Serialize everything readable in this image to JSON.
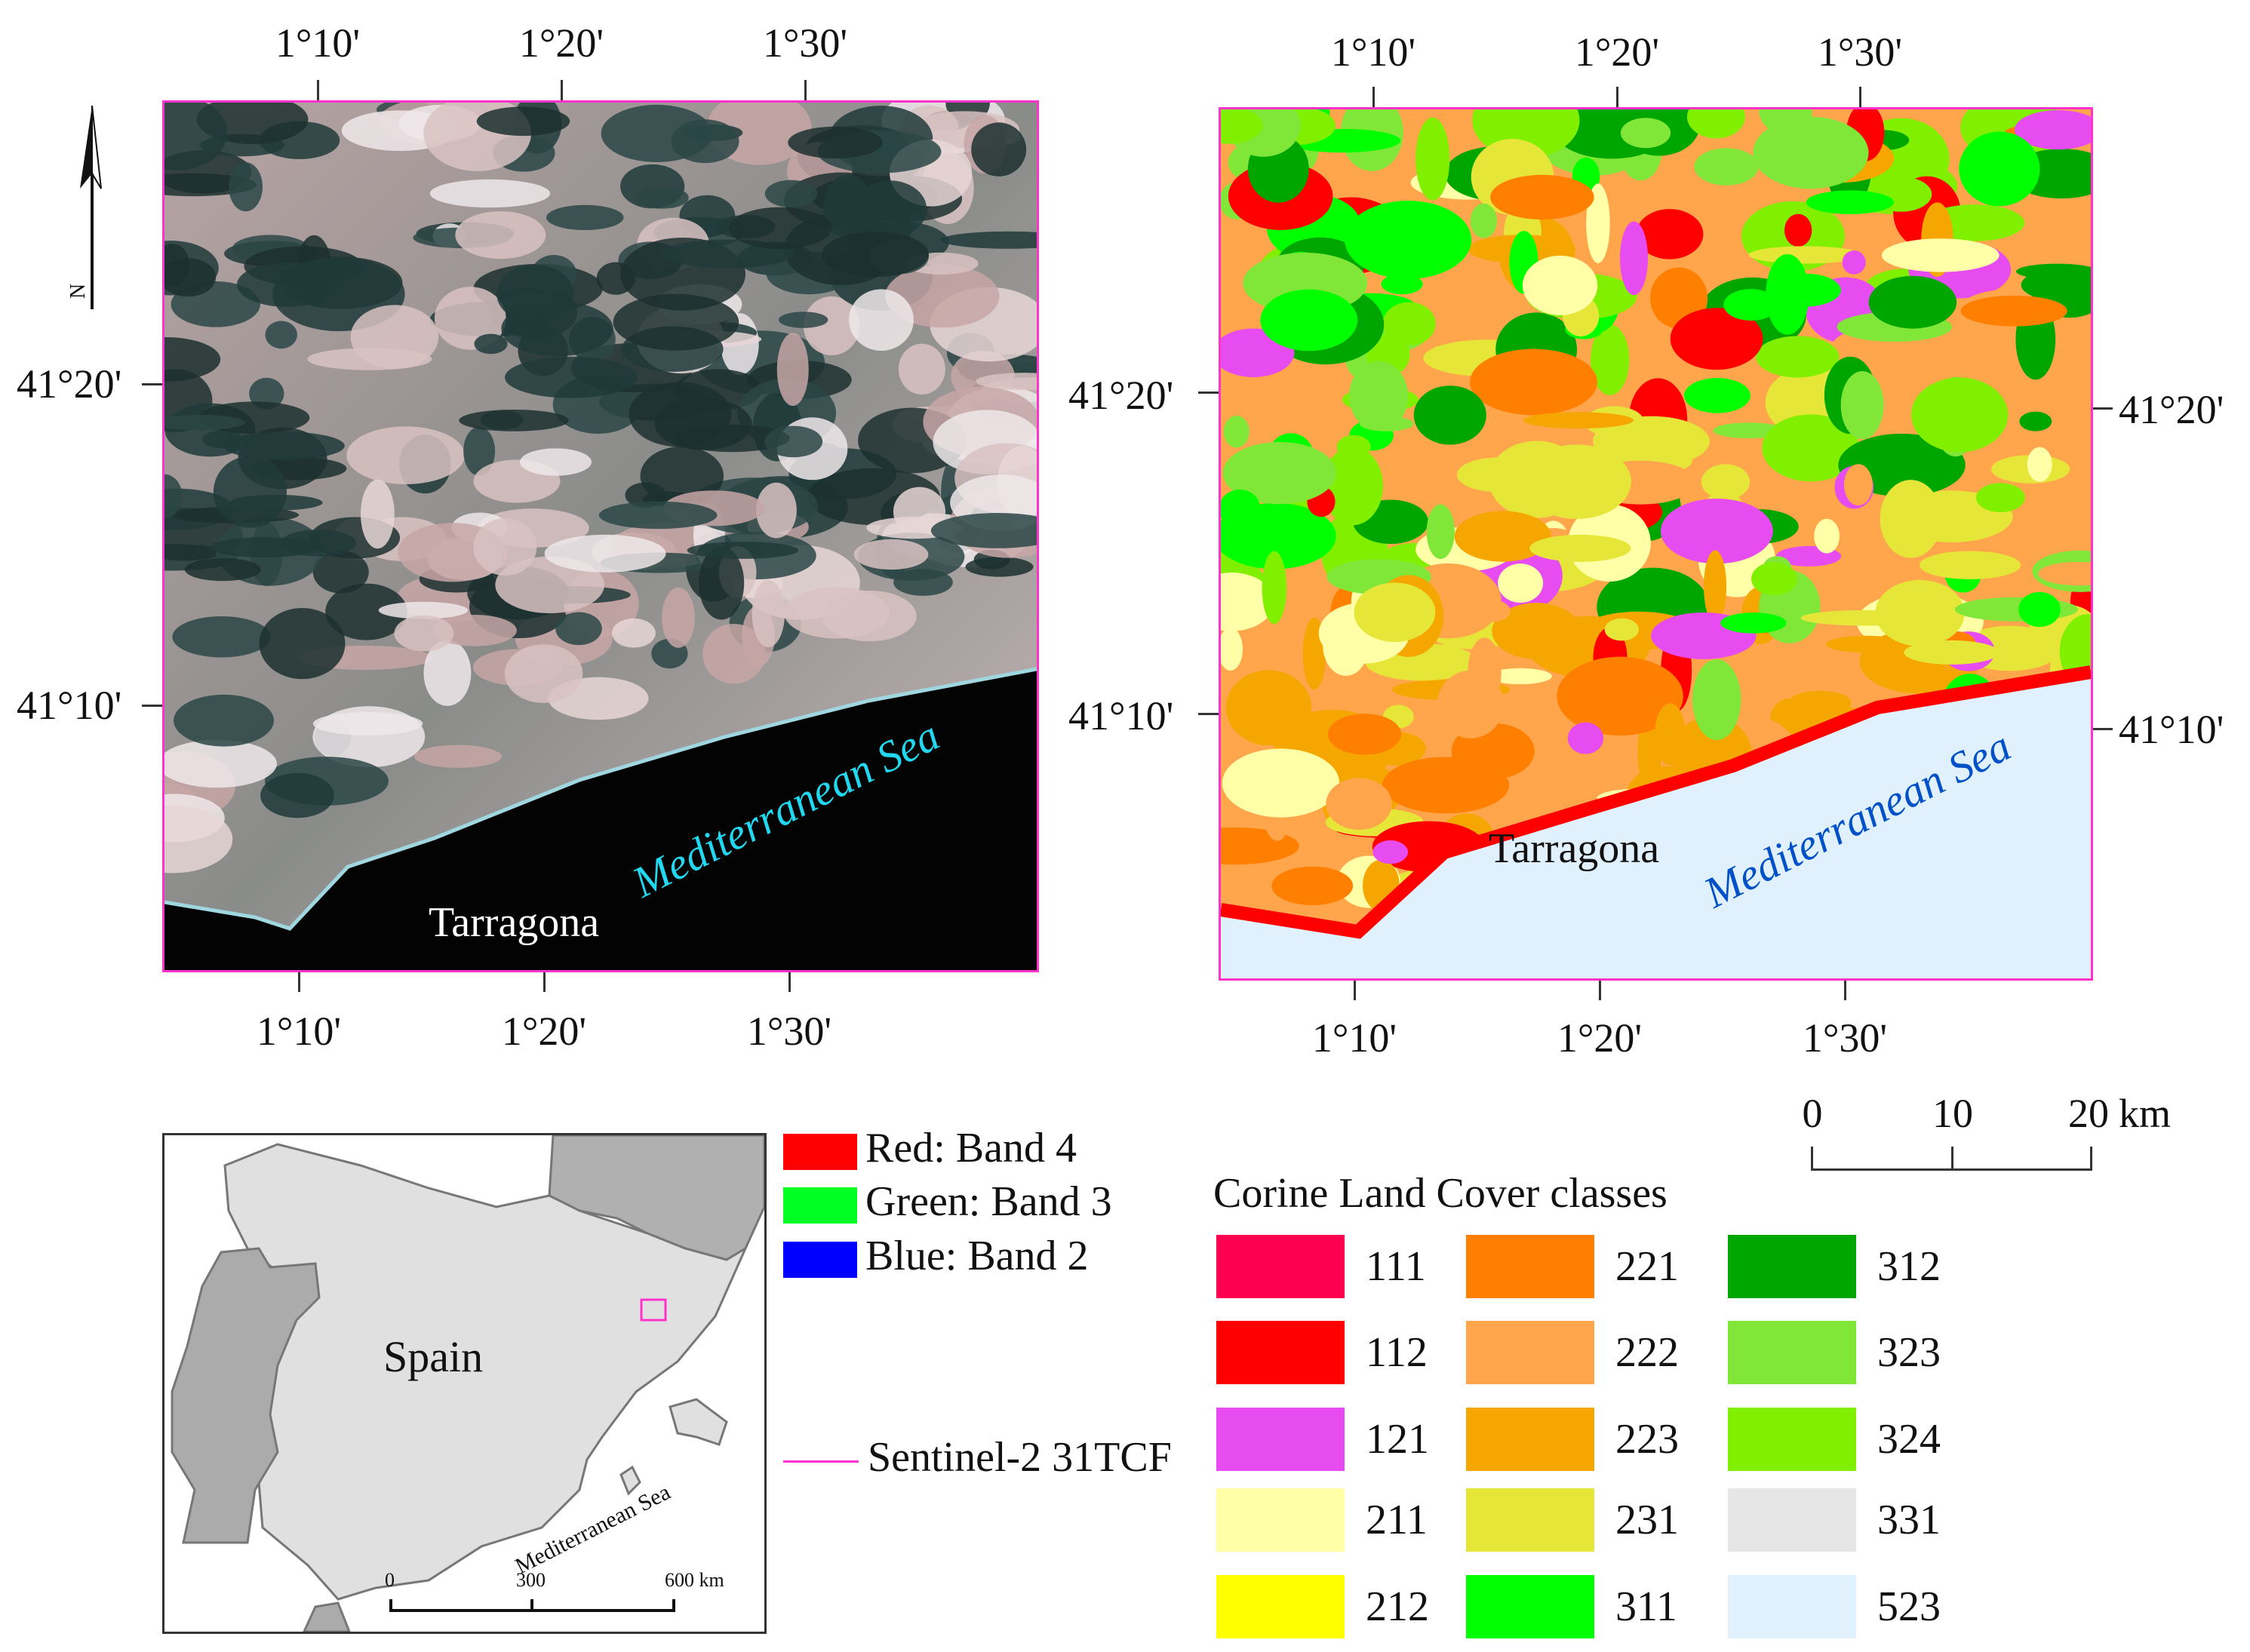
{
  "left_map": {
    "top_ticks": [
      "1°10'",
      "1°20'",
      "1°30'"
    ],
    "bottom_ticks": [
      "1°10'",
      "1°20'",
      "1°30'"
    ],
    "lat_ticks": [
      "41°20'",
      "41°10'"
    ],
    "city_label": "Tarragona",
    "sea_label": "Mediterranean Sea",
    "sea_label_color": "#22d8f0",
    "frame_color": "#ff33cc"
  },
  "right_map": {
    "top_ticks": [
      "1°10'",
      "1°20'",
      "1°30'"
    ],
    "bottom_ticks": [
      "1°10'",
      "1°20'",
      "1°30'"
    ],
    "lat_ticks_left": [
      "41°20'",
      "41°10'"
    ],
    "lat_ticks_right": [
      "41°20'",
      "41°10'"
    ],
    "city_label": "Tarragona",
    "sea_label": "Mediterranean Sea",
    "sea_label_color": "#0050c8"
  },
  "north_arrow": {
    "label": "N"
  },
  "scale_bar": {
    "ticks": [
      "0",
      "10",
      "20"
    ],
    "unit": "km"
  },
  "inset": {
    "country_label": "Spain",
    "sea_label": "Mediterranean Sea",
    "scale_ticks": [
      "0",
      "300",
      "600 km"
    ]
  },
  "rgb_legend": [
    {
      "label": "Red: Band 4",
      "color": "#ff0000"
    },
    {
      "label": "Green: Band 3",
      "color": "#00ff22"
    },
    {
      "label": "Blue: Band 2",
      "color": "#0000ff"
    }
  ],
  "tile_legend": {
    "label": "Sentinel-2 31TCF",
    "color": "#ff33cc"
  },
  "corine": {
    "title": "Corine Land Cover classes",
    "classes": [
      {
        "code": "111",
        "color": "#ff0050"
      },
      {
        "code": "112",
        "color": "#ff0000"
      },
      {
        "code": "121",
        "color": "#e64cf0"
      },
      {
        "code": "211",
        "color": "#ffffa8"
      },
      {
        "code": "212",
        "color": "#ffff00"
      },
      {
        "code": "221",
        "color": "#ff8000"
      },
      {
        "code": "222",
        "color": "#ffa64c"
      },
      {
        "code": "223",
        "color": "#f5a600"
      },
      {
        "code": "231",
        "color": "#e6e638"
      },
      {
        "code": "311",
        "color": "#00ff00"
      },
      {
        "code": "312",
        "color": "#00a600"
      },
      {
        "code": "323",
        "color": "#80e638"
      },
      {
        "code": "324",
        "color": "#80f000"
      },
      {
        "code": "331",
        "color": "#e6e6e6"
      },
      {
        "code": "523",
        "color": "#e0f0fc"
      }
    ]
  }
}
